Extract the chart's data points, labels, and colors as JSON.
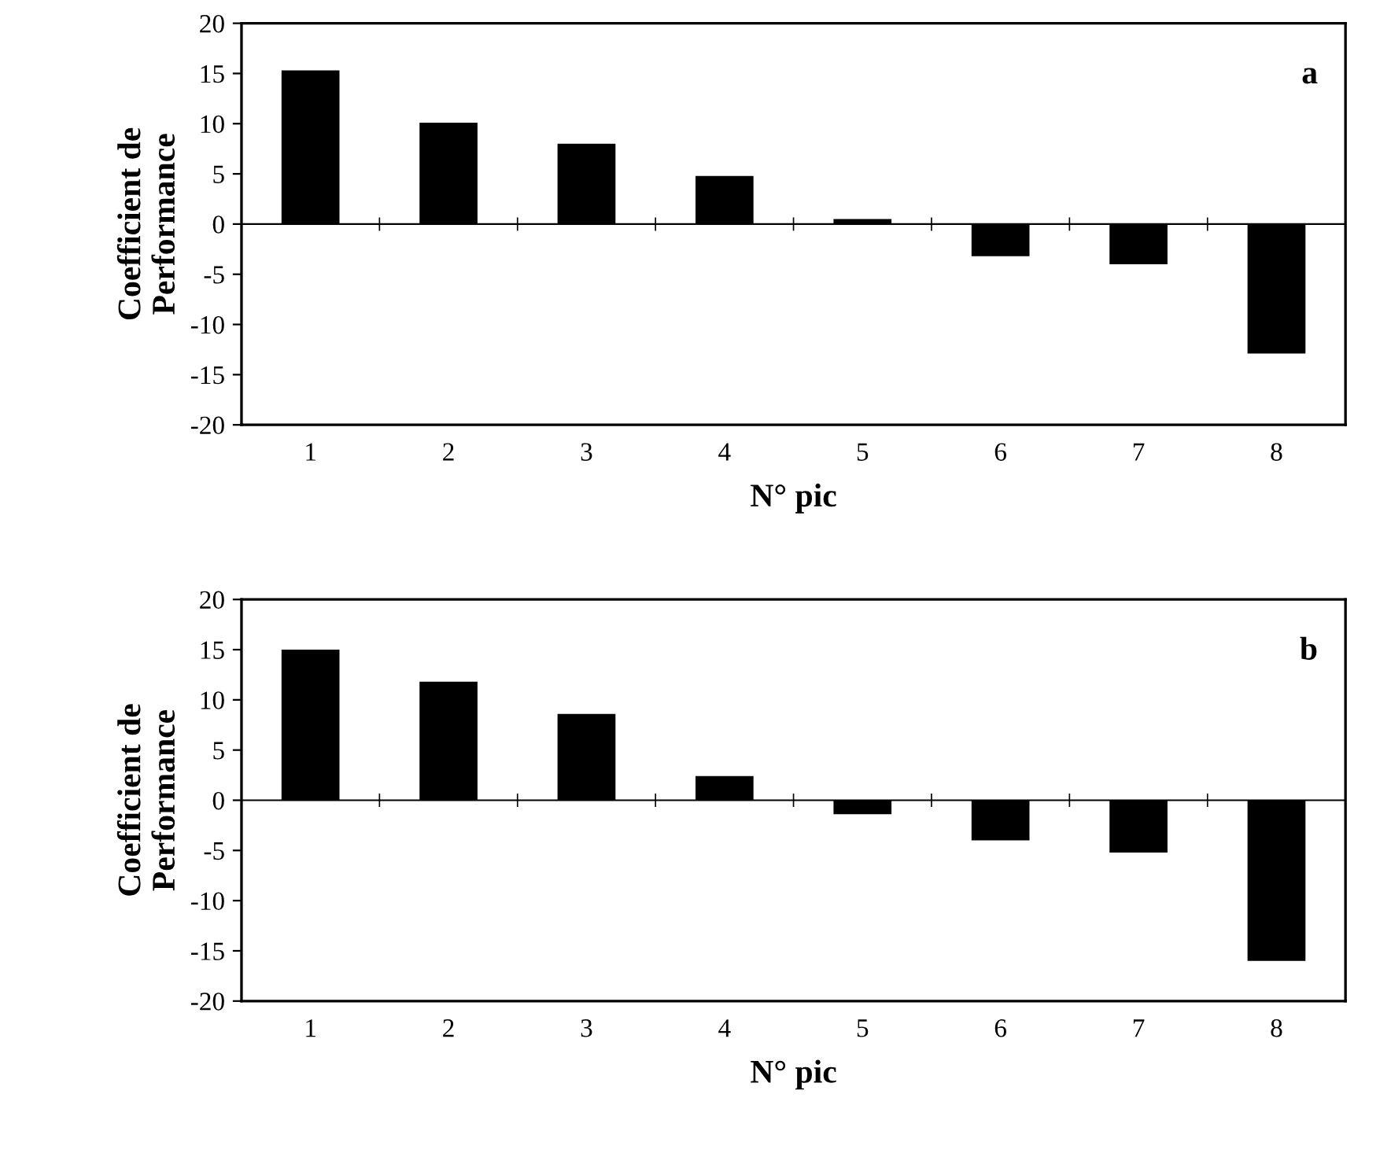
{
  "chart_data": [
    {
      "type": "bar",
      "categories": [
        "1",
        "2",
        "3",
        "4",
        "5",
        "6",
        "7",
        "8"
      ],
      "values": [
        15.3,
        10.1,
        8,
        4.8,
        0.5,
        -3.2,
        -4,
        -12.9
      ],
      "color": "#000000",
      "ylim": [
        -20,
        20
      ],
      "yticks": [
        -20,
        -15,
        -10,
        -5,
        0,
        5,
        10,
        15,
        20
      ],
      "xlabel": "N° pic",
      "ylabel": "Coefficient de\nPerformance",
      "annotations": [
        "a"
      ],
      "ref_lines": [
        {
          "axis": "y",
          "value": 0,
          "color": "#000000"
        }
      ],
      "grid": false,
      "legend": false
    },
    {
      "type": "bar",
      "categories": [
        "1",
        "2",
        "3",
        "4",
        "5",
        "6",
        "7",
        "8"
      ],
      "values": [
        15,
        11.8,
        8.6,
        2.4,
        -1.4,
        -4,
        -5.2,
        -16
      ],
      "color": "#000000",
      "ylim": [
        -20,
        20
      ],
      "yticks": [
        -20,
        -15,
        -10,
        -5,
        0,
        5,
        10,
        15,
        20
      ],
      "xlabel": "N° pic",
      "ylabel": "Coefficient de\nPerformance",
      "annotations": [
        "b"
      ],
      "ref_lines": [
        {
          "axis": "y",
          "value": 0,
          "color": "#000000"
        }
      ],
      "grid": false,
      "legend": false
    }
  ]
}
